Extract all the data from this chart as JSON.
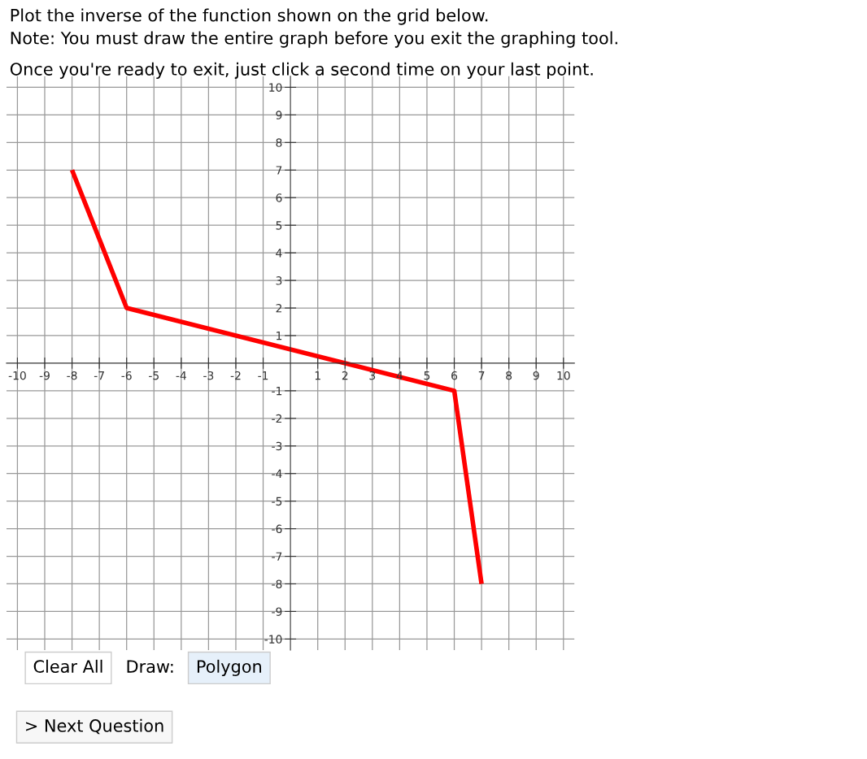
{
  "chart_data": {
    "type": "line",
    "title": "Plot the inverse of the function shown on the grid below.",
    "annotations": [
      "Note: You must draw the entire graph before you exit the graphing tool.",
      "Once you're ready to exit, just click a second time on your last point.",
      "Clear All",
      "Draw:",
      "Polygon",
      "> Next Question"
    ],
    "x": [
      -8,
      -6,
      6,
      7
    ],
    "series": [
      {
        "color": "#ff0000",
        "values": [
          7,
          2,
          -1,
          -8
        ]
      }
    ],
    "xlim": [
      -10.4,
      10.4
    ],
    "ylim": [
      -10.4,
      10.4
    ],
    "xticks": [
      -10,
      -9,
      -8,
      -7,
      -6,
      -5,
      -4,
      -3,
      -2,
      -1,
      1,
      2,
      3,
      4,
      5,
      6,
      7,
      8,
      9,
      10
    ],
    "yticks": [
      -10,
      -9,
      -8,
      -7,
      -6,
      -5,
      -4,
      -3,
      -2,
      -1,
      1,
      2,
      3,
      4,
      5,
      6,
      7,
      8,
      9,
      10
    ],
    "grid": true,
    "marker": "none",
    "line_style": "solid"
  }
}
